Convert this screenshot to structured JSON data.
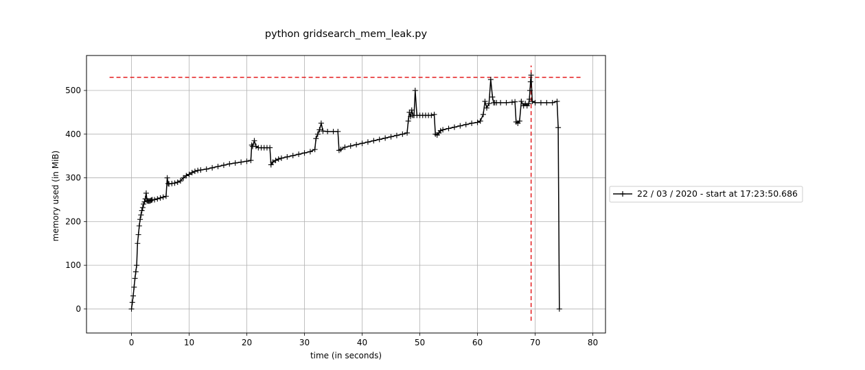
{
  "chart_data": {
    "type": "line",
    "title": "python gridsearch_mem_leak.py",
    "xlabel": "time (in seconds)",
    "ylabel": "memory used (in MiB)",
    "xlim": [
      -7.8,
      82.2
    ],
    "ylim": [
      -55,
      580
    ],
    "xticks": [
      0,
      10,
      20,
      30,
      40,
      50,
      60,
      70,
      80
    ],
    "yticks": [
      0,
      100,
      200,
      300,
      400,
      500
    ],
    "grid": true,
    "legend_placement": "right-outside",
    "colors": {
      "line": "#000000",
      "reference": "#e41a1c",
      "grid": "#b0b0b0"
    },
    "series": [
      {
        "name": "22 / 03 / 2020 - start at 17:23:50.686",
        "marker": "+",
        "x": [
          0.0,
          0.15,
          0.3,
          0.45,
          0.6,
          0.75,
          0.9,
          1.05,
          1.2,
          1.35,
          1.5,
          1.65,
          1.8,
          1.95,
          2.1,
          2.25,
          2.4,
          2.55,
          2.7,
          2.85,
          3.0,
          3.15,
          3.3,
          3.45,
          3.6,
          4.0,
          4.5,
          5.0,
          5.5,
          6.0,
          6.2,
          6.35,
          6.5,
          7.0,
          7.5,
          8.0,
          8.5,
          9.0,
          9.5,
          10.0,
          10.5,
          11.0,
          11.5,
          12.0,
          13.0,
          14.0,
          15.0,
          16.0,
          17.0,
          18.0,
          19.0,
          20.0,
          20.7,
          20.85,
          21.0,
          21.3,
          21.6,
          22.0,
          22.5,
          23.0,
          23.5,
          24.0,
          24.2,
          24.5,
          25.0,
          25.5,
          26.0,
          27.0,
          28.0,
          29.0,
          30.0,
          31.0,
          31.8,
          32.0,
          32.3,
          32.6,
          32.9,
          33.2,
          34.0,
          35.0,
          35.8,
          36.0,
          36.3,
          37.0,
          38.0,
          39.0,
          40.0,
          41.0,
          42.0,
          43.0,
          44.0,
          45.0,
          46.0,
          47.0,
          47.8,
          48.0,
          48.2,
          48.4,
          48.6,
          48.8,
          49.0,
          49.2,
          49.5,
          50.0,
          50.5,
          51.0,
          51.5,
          52.0,
          52.5,
          52.7,
          53.0,
          53.3,
          53.6,
          54.0,
          55.0,
          56.0,
          57.0,
          58.0,
          59.0,
          60.0,
          60.5,
          61.0,
          61.3,
          61.6,
          62.0,
          62.3,
          62.6,
          62.8,
          63.0,
          63.3,
          64.0,
          65.0,
          66.0,
          66.5,
          66.7,
          67.0,
          67.3,
          67.6,
          68.0,
          68.3,
          68.6,
          68.9,
          69.0,
          69.1,
          69.2,
          69.3,
          69.5,
          70.0,
          71.0,
          72.0,
          73.0,
          73.8,
          74.0,
          74.2
        ],
        "y": [
          0,
          15,
          30,
          50,
          70,
          85,
          100,
          150,
          170,
          190,
          205,
          215,
          225,
          232,
          240,
          245,
          252,
          265,
          248,
          247,
          247,
          247,
          248,
          249,
          250,
          250,
          252,
          254,
          256,
          258,
          300,
          287,
          286,
          287,
          288,
          290,
          293,
          300,
          305,
          308,
          312,
          315,
          317,
          318,
          320,
          323,
          326,
          329,
          332,
          334,
          336,
          338,
          340,
          375,
          372,
          385,
          372,
          369,
          369,
          369,
          369,
          369,
          330,
          336,
          340,
          343,
          345,
          348,
          351,
          354,
          357,
          360,
          365,
          390,
          400,
          410,
          425,
          407,
          406,
          406,
          406,
          363,
          365,
          370,
          373,
          376,
          379,
          382,
          385,
          388,
          391,
          394,
          397,
          400,
          403,
          430,
          450,
          440,
          455,
          443,
          443,
          500,
          443,
          443,
          443,
          443,
          443,
          443,
          445,
          400,
          398,
          403,
          408,
          410,
          413,
          416,
          419,
          422,
          425,
          427,
          430,
          445,
          475,
          460,
          470,
          525,
          485,
          472,
          472,
          472,
          472,
          472,
          473,
          474,
          428,
          425,
          430,
          475,
          465,
          470,
          465,
          470,
          480,
          500,
          520,
          535,
          475,
          472,
          472,
          472,
          472,
          475,
          415,
          0
        ]
      },
      {
        "name": "",
        "kind": "reference",
        "style": "dashed",
        "x": [
          -3.8,
          78.2
        ],
        "y": [
          530,
          530
        ]
      },
      {
        "name": "",
        "kind": "reference",
        "style": "dashed",
        "x": [
          69.3,
          69.3
        ],
        "y": [
          -27,
          557
        ]
      }
    ]
  }
}
